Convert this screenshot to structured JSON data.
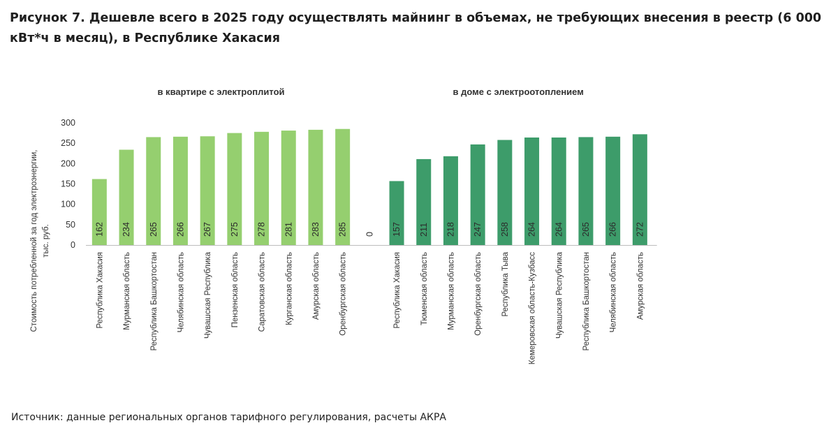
{
  "figure": {
    "title": "Рисунок 7. Дешевле всего в 2025 году осуществлять майнинг в объемах, не требующих внесения в реестр (6 000 кВт*ч в месяц), в Республике Хакасия",
    "source": "Источник: данные региональных органов тарифного регулирования, расчеты АКРА"
  },
  "chart_data": {
    "type": "bar",
    "ylabel_lines": [
      "Стоимость потребленной за год электроэнергии,",
      "тыс. руб."
    ],
    "ylim": [
      0,
      300
    ],
    "yticks": [
      "0",
      "50",
      "100",
      "150",
      "200",
      "250",
      "300"
    ],
    "grid": false,
    "colors": {
      "apartment": "#95cf6f",
      "house": "#3d9c6a"
    },
    "groups": [
      {
        "name": "в квартире с электроплитой",
        "color_key": "apartment",
        "categories": [
          "Республика Хакасия",
          "Мурманская область",
          "Республика Башкортостан",
          "Челябинская область",
          "Чувашская Республика",
          "Пензенская область",
          "Саратовская область",
          "Курганская область",
          "Амурская область",
          "Оренбургская область"
        ],
        "values": [
          162,
          234,
          265,
          266,
          267,
          275,
          278,
          281,
          283,
          285
        ]
      },
      {
        "name": "",
        "categories": [
          ""
        ],
        "values": [
          0
        ]
      },
      {
        "name": "в доме с электроотоплением",
        "color_key": "house",
        "categories": [
          "Республика Хакасия",
          "Тюменская область",
          "Мурманская область",
          "Оренбургская область",
          "Республика Тыва",
          "Кемеровская область-Кузбасс",
          "Чувашская Республика",
          "Республика Башкортостан",
          "Челябинская область",
          "Амурская область"
        ],
        "values": [
          157,
          211,
          218,
          247,
          258,
          264,
          264,
          265,
          266,
          272
        ]
      }
    ]
  }
}
